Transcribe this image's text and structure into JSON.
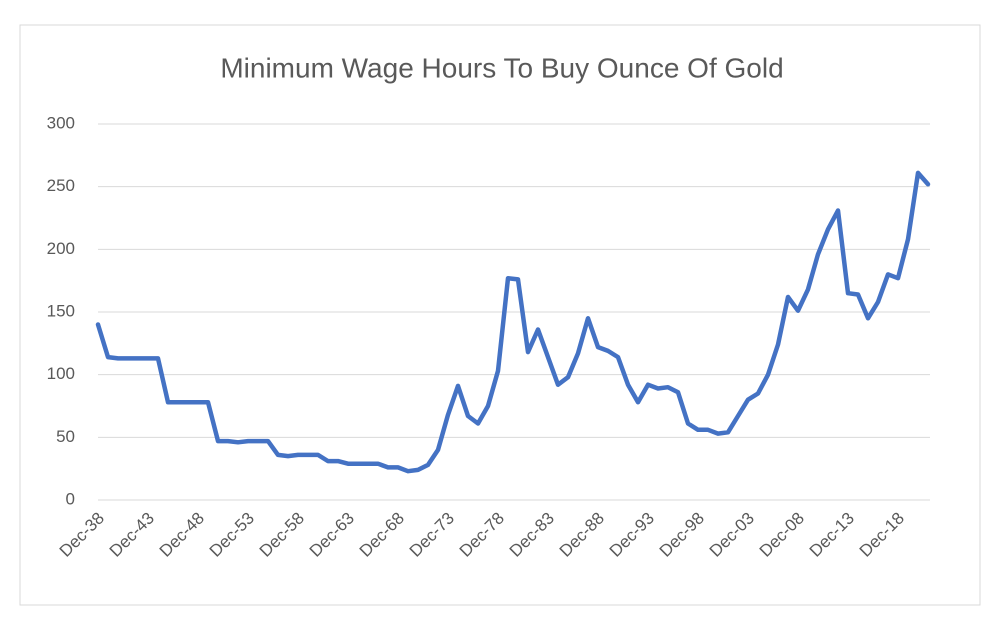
{
  "chart_data": {
    "type": "line",
    "title": "Minimum Wage Hours To Buy Ounce Of Gold",
    "categories": [
      "Dec-38",
      null,
      null,
      null,
      null,
      "Dec-43",
      null,
      null,
      null,
      null,
      "Dec-48",
      null,
      null,
      null,
      null,
      "Dec-53",
      null,
      null,
      null,
      null,
      "Dec-58",
      null,
      null,
      null,
      null,
      "Dec-63",
      null,
      null,
      null,
      null,
      "Dec-68",
      null,
      null,
      null,
      null,
      "Dec-73",
      null,
      null,
      null,
      null,
      "Dec-78",
      null,
      null,
      null,
      null,
      "Dec-83",
      null,
      null,
      null,
      null,
      "Dec-88",
      null,
      null,
      null,
      null,
      "Dec-93",
      null,
      null,
      null,
      null,
      "Dec-98",
      null,
      null,
      null,
      null,
      "Dec-03",
      null,
      null,
      null,
      null,
      "Dec-08",
      null,
      null,
      null,
      null,
      "Dec-13",
      null,
      null,
      null,
      null,
      "Dec-18",
      null,
      null,
      null
    ],
    "values": [
      140,
      114,
      113,
      113,
      113,
      113,
      113,
      78,
      78,
      78,
      78,
      78,
      47,
      47,
      46,
      47,
      47,
      47,
      36,
      35,
      36,
      36,
      36,
      31,
      31,
      29,
      29,
      29,
      29,
      26,
      26,
      23,
      24,
      28,
      40,
      68,
      91,
      67,
      61,
      75,
      103,
      177,
      176,
      118,
      136,
      114,
      92,
      98,
      117,
      145,
      122,
      119,
      114,
      92,
      78,
      92,
      89,
      90,
      86,
      61,
      56,
      56,
      53,
      54,
      67,
      80,
      85,
      100,
      124,
      162,
      151,
      168,
      196,
      216,
      231,
      165,
      164,
      145,
      158,
      180,
      177,
      208,
      261,
      252
    ],
    "color": "#4472c4",
    "ylim": [
      0,
      300
    ],
    "yticks": [
      0,
      50,
      100,
      150,
      200,
      250,
      300
    ],
    "grid": true
  }
}
